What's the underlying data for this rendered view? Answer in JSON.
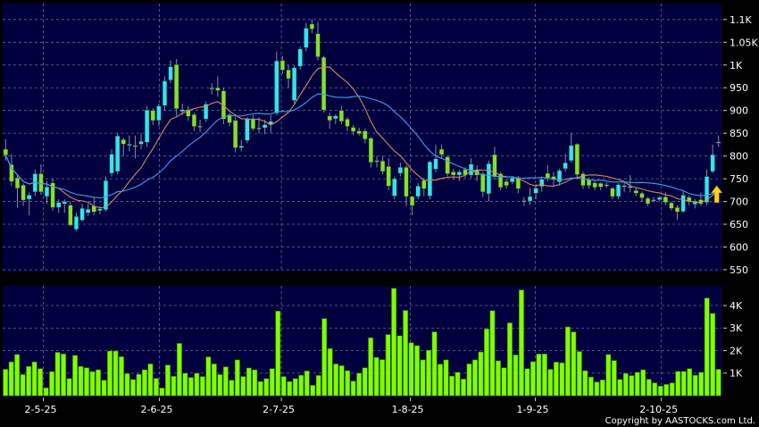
{
  "chart_data": [
    {
      "type": "candlestick",
      "panel": "price",
      "ylim": [
        546,
        1135
      ],
      "y_ticks": [
        550,
        600,
        650,
        700,
        750,
        800,
        850,
        900,
        950,
        1000,
        1050,
        1100
      ],
      "y_tick_labels": [
        "550",
        "600",
        "650",
        "700",
        "750",
        "800",
        "850",
        "900",
        "950",
        "1K",
        "1.05K",
        "1.1K"
      ],
      "grid": true,
      "colors": {
        "background": "#00003f",
        "up": "#33e4f2",
        "down": "#86e02a",
        "ma_short": "#d9865a",
        "ma_long": "#3f9fe6",
        "grid": "#6a6a9a",
        "marker": "#ffd21a"
      },
      "moving_averages": [
        {
          "period": 10,
          "color": "#d9865a"
        },
        {
          "period": 20,
          "color": "#3f9fe6"
        }
      ],
      "marker": "up-arrow at last session",
      "ohlc": [
        [
          815,
          837,
          790,
          802
        ],
        [
          781,
          804,
          735,
          744
        ],
        [
          752,
          760,
          687,
          729
        ],
        [
          736,
          740,
          690,
          703
        ],
        [
          705,
          720,
          670,
          714
        ],
        [
          721,
          770,
          712,
          761
        ],
        [
          761,
          782,
          715,
          721
        ],
        [
          711,
          745,
          695,
          732
        ],
        [
          741,
          750,
          680,
          687
        ],
        [
          687,
          705,
          675,
          698
        ],
        [
          695,
          705,
          675,
          700
        ],
        [
          692,
          700,
          645,
          648
        ],
        [
          639,
          675,
          635,
          667
        ],
        [
          659,
          695,
          655,
          685
        ],
        [
          675,
          695,
          668,
          683
        ],
        [
          690,
          710,
          670,
          677
        ],
        [
          680,
          690,
          672,
          684
        ],
        [
          682,
          755,
          678,
          746
        ],
        [
          762,
          815,
          755,
          804
        ],
        [
          766,
          850,
          760,
          844
        ],
        [
          836,
          840,
          800,
          826
        ],
        [
          824,
          845,
          810,
          826
        ],
        [
          823,
          845,
          795,
          823
        ],
        [
          826,
          850,
          815,
          832
        ],
        [
          830,
          910,
          820,
          901
        ],
        [
          900,
          905,
          868,
          878
        ],
        [
          878,
          915,
          865,
          910
        ],
        [
          911,
          975,
          900,
          965
        ],
        [
          967,
          1010,
          960,
          996
        ],
        [
          1001,
          1013,
          888,
          904
        ],
        [
          898,
          915,
          890,
          902
        ],
        [
          902,
          910,
          877,
          887
        ],
        [
          891,
          895,
          855,
          865
        ],
        [
          865,
          880,
          852,
          866
        ],
        [
          881,
          920,
          875,
          914
        ],
        [
          949,
          960,
          935,
          950
        ],
        [
          950,
          975,
          930,
          944
        ],
        [
          943,
          950,
          870,
          881
        ],
        [
          891,
          895,
          865,
          873
        ],
        [
          878,
          885,
          808,
          818
        ],
        [
          818,
          835,
          810,
          822
        ],
        [
          834,
          885,
          828,
          881
        ],
        [
          881,
          890,
          855,
          860
        ],
        [
          862,
          885,
          850,
          862
        ],
        [
          862,
          880,
          848,
          869
        ],
        [
          869,
          890,
          850,
          876
        ],
        [
          894,
          1030,
          890,
          1009
        ],
        [
          1010,
          1020,
          980,
          989
        ],
        [
          989,
          1000,
          950,
          970
        ],
        [
          922,
          1000,
          915,
          994
        ],
        [
          997,
          1040,
          990,
          1035
        ],
        [
          1038,
          1092,
          1030,
          1081
        ],
        [
          1090,
          1100,
          1070,
          1079
        ],
        [
          1069,
          1095,
          1010,
          1018
        ],
        [
          1017,
          1020,
          895,
          901
        ],
        [
          888,
          895,
          860,
          878
        ],
        [
          882,
          892,
          870,
          888
        ],
        [
          900,
          910,
          870,
          876
        ],
        [
          881,
          885,
          855,
          865
        ],
        [
          863,
          868,
          846,
          854
        ],
        [
          855,
          862,
          845,
          849
        ],
        [
          855,
          860,
          828,
          837
        ],
        [
          839,
          842,
          775,
          786
        ],
        [
          789,
          800,
          775,
          790
        ],
        [
          789,
          800,
          760,
          766
        ],
        [
          777,
          795,
          725,
          734
        ],
        [
          712,
          755,
          705,
          750
        ],
        [
          762,
          785,
          755,
          775
        ],
        [
          775,
          780,
          690,
          711
        ],
        [
          711,
          712,
          670,
          691
        ],
        [
          711,
          740,
          705,
          734
        ],
        [
          746,
          752,
          712,
          728
        ],
        [
          712,
          790,
          705,
          787
        ],
        [
          771,
          825,
          765,
          794
        ],
        [
          815,
          825,
          795,
          803
        ],
        [
          798,
          802,
          755,
          761
        ],
        [
          765,
          772,
          748,
          758
        ],
        [
          758,
          770,
          745,
          765
        ],
        [
          770,
          775,
          752,
          758
        ],
        [
          758,
          795,
          752,
          782
        ],
        [
          770,
          780,
          745,
          758
        ],
        [
          761,
          765,
          710,
          721
        ],
        [
          717,
          790,
          700,
          783
        ],
        [
          803,
          820,
          748,
          754
        ],
        [
          761,
          765,
          725,
          731
        ],
        [
          744,
          750,
          728,
          735
        ],
        [
          743,
          756,
          738,
          752
        ],
        [
          752,
          756,
          718,
          728
        ],
        [
          701,
          710,
          690,
          702
        ],
        [
          701,
          730,
          692,
          711
        ],
        [
          718,
          738,
          705,
          729
        ],
        [
          733,
          755,
          722,
          749
        ],
        [
          762,
          780,
          745,
          752
        ],
        [
          755,
          765,
          735,
          748
        ],
        [
          743,
          772,
          735,
          768
        ],
        [
          772,
          805,
          765,
          785
        ],
        [
          790,
          850,
          785,
          823
        ],
        [
          826,
          828,
          752,
          759
        ],
        [
          761,
          765,
          728,
          735
        ],
        [
          748,
          752,
          728,
          735
        ],
        [
          741,
          745,
          725,
          731
        ],
        [
          740,
          742,
          725,
          732
        ],
        [
          736,
          742,
          730,
          737
        ],
        [
          729,
          732,
          705,
          711
        ],
        [
          711,
          740,
          705,
          737
        ],
        [
          734,
          742,
          720,
          735
        ],
        [
          732,
          758,
          720,
          733
        ],
        [
          724,
          730,
          712,
          718
        ],
        [
          718,
          722,
          700,
          708
        ],
        [
          707,
          710,
          690,
          695
        ],
        [
          703,
          710,
          698,
          704
        ],
        [
          704,
          712,
          700,
          709
        ],
        [
          710,
          720,
          692,
          698
        ],
        [
          697,
          700,
          680,
          685
        ],
        [
          687,
          692,
          660,
          677
        ],
        [
          678,
          725,
          675,
          714
        ],
        [
          709,
          713,
          692,
          699
        ],
        [
          694,
          705,
          685,
          701
        ],
        [
          704,
          720,
          690,
          695
        ],
        [
          698,
          770,
          692,
          755
        ],
        [
          766,
          825,
          762,
          803
        ],
        [
          830,
          845,
          820,
          831
        ]
      ],
      "x_ticks": [
        {
          "label": "2-5-25",
          "index": 6.4
        },
        {
          "label": "2-6-25",
          "index": 26.1
        },
        {
          "label": "2-7-25",
          "index": 46.8
        },
        {
          "label": "1-8-25",
          "index": 68.7
        },
        {
          "label": "1-9-25",
          "index": 89.9
        },
        {
          "label": "2-10-25",
          "index": 111.3
        }
      ]
    },
    {
      "type": "bar",
      "panel": "volume",
      "unit": "K",
      "ylim": [
        0,
        4.87
      ],
      "y_ticks": [
        1,
        2,
        3,
        4
      ],
      "y_tick_labels": [
        "1K",
        "2K",
        "3K",
        "4K"
      ],
      "grid": true,
      "bar_color": "#80ff00",
      "values": [
        1.17,
        1.5,
        1.83,
        0.94,
        1.3,
        1.5,
        1.2,
        0.35,
        1.07,
        1.92,
        1.85,
        0.76,
        1.79,
        1.3,
        1.24,
        1.07,
        1.15,
        0.69,
        1.98,
        1.98,
        1.73,
        0.98,
        0.72,
        0.95,
        1.15,
        1.41,
        0.77,
        0.34,
        1.36,
        0.86,
        2.32,
        1.0,
        0.81,
        1.0,
        0.85,
        1.72,
        1.41,
        0.94,
        1.28,
        0.69,
        1.59,
        0.85,
        1.23,
        1.15,
        0.63,
        0.76,
        1.2,
        3.75,
        0.85,
        0.63,
        0.76,
        0.91,
        1.1,
        0.46,
        0.9,
        3.42,
        2.09,
        1.41,
        1.33,
        1.11,
        0.65,
        1.0,
        1.24,
        2.57,
        1.7,
        1.6,
        2.71,
        4.76,
        2.66,
        3.78,
        2.35,
        2.22,
        1.59,
        2.02,
        2.83,
        1.4,
        1.59,
        0.87,
        1.04,
        0.74,
        1.41,
        1.59,
        1.94,
        2.96,
        3.77,
        1.55,
        1.24,
        3.23,
        1.81,
        4.69,
        1.2,
        1.51,
        1.85,
        1.85,
        1.17,
        1.49,
        1.46,
        3.05,
        2.83,
        1.96,
        1.11,
        0.83,
        0.61,
        0.7,
        1.83,
        1.56,
        0.72,
        0.99,
        0.89,
        1.04,
        1.15,
        0.73,
        0.57,
        0.43,
        0.5,
        0.57,
        1.08,
        1.08,
        1.2,
        0.91,
        1.04,
        4.33,
        3.65,
        1.17
      ]
    }
  ],
  "footer": {
    "copyright": "Copyright by AASTOCKS.com Ltd."
  }
}
